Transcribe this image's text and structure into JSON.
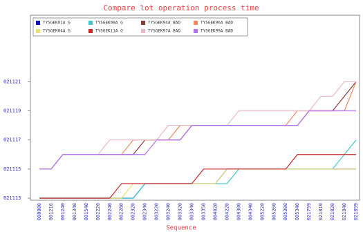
{
  "chart_data": {
    "type": "line",
    "title": "Compare lot operation process time",
    "x_label": "Sequence",
    "categories": [
      "000000",
      "001216",
      "001240",
      "001340",
      "001540",
      "002220",
      "002240",
      "002280",
      "002320",
      "002340",
      "003220",
      "003240",
      "003320",
      "003340",
      "003350",
      "004020",
      "004220",
      "004300",
      "004340",
      "005220",
      "005260",
      "005300",
      "005340",
      "021759",
      "021810",
      "021820",
      "021840",
      "021859"
    ],
    "ylim": [
      21113,
      21125
    ],
    "yticks": [
      {
        "value": 21113,
        "label": "021113"
      },
      {
        "value": 21115,
        "label": "021115"
      },
      {
        "value": 21117,
        "label": "021117"
      },
      {
        "value": 21119,
        "label": "021119"
      },
      {
        "value": 21121,
        "label": "021121"
      }
    ],
    "series": [
      {
        "name": "TYSGEK01A G",
        "color": "#1010c0",
        "values": [
          21113,
          21113,
          21113,
          21113,
          21113,
          21113,
          21113,
          21113,
          21113,
          21114,
          21114,
          21114,
          21114,
          21114,
          21114,
          21114,
          21115,
          21115,
          21115,
          21115,
          21115,
          21115,
          21115,
          21115,
          21115,
          21115,
          21115,
          21115
        ]
      },
      {
        "name": "TYSGEK09A G",
        "color": "#40c8d0",
        "values": [
          21113,
          21113,
          21113,
          21113,
          21113,
          21113,
          21113,
          21113,
          21113,
          21114,
          21114,
          21114,
          21114,
          21114,
          21114,
          21114,
          21114,
          21115,
          21115,
          21115,
          21115,
          21115,
          21115,
          21115,
          21115,
          21115,
          21116,
          21117
        ]
      },
      {
        "name": "TYSGEK94A BAD",
        "color": "#8b3a3a",
        "values": [
          21115,
          21115,
          21116,
          21116,
          21116,
          21116,
          21116,
          21116,
          21116,
          21117,
          21117,
          21117,
          21117,
          21118,
          21118,
          21118,
          21118,
          21118,
          21118,
          21118,
          21118,
          21118,
          21118,
          21119,
          21119,
          21119,
          21120,
          21121
        ]
      },
      {
        "name": "TYSGEK96A BAD",
        "color": "#f08a60",
        "values": [
          21115,
          21115,
          21116,
          21116,
          21116,
          21116,
          21116,
          21116,
          21117,
          21117,
          21117,
          21117,
          21118,
          21118,
          21118,
          21118,
          21118,
          21118,
          21118,
          21118,
          21118,
          21118,
          21119,
          21119,
          21119,
          21119,
          21119,
          21121
        ]
      },
      {
        "name": "TYSGEK04A G",
        "color": "#e8e070",
        "values": [
          21113,
          21113,
          21113,
          21113,
          21113,
          21113,
          21113,
          21113,
          21114,
          21114,
          21114,
          21114,
          21114,
          21114,
          21114,
          21114,
          21115,
          21115,
          21115,
          21115,
          21115,
          21115,
          21115,
          21115,
          21115,
          21115,
          21115,
          21115
        ]
      },
      {
        "name": "TYSGEK11A G",
        "color": "#c82828",
        "values": [
          21113,
          21113,
          21113,
          21113,
          21113,
          21113,
          21113,
          21114,
          21114,
          21114,
          21114,
          21114,
          21114,
          21114,
          21115,
          21115,
          21115,
          21115,
          21115,
          21115,
          21115,
          21115,
          21116,
          21116,
          21116,
          21116,
          21116,
          21116
        ]
      },
      {
        "name": "TYSGEK97A BAD",
        "color": "#e8b8c8",
        "values": [
          21115,
          21115,
          21116,
          21116,
          21116,
          21116,
          21117,
          21117,
          21117,
          21117,
          21117,
          21118,
          21118,
          21118,
          21118,
          21118,
          21118,
          21119,
          21119,
          21119,
          21119,
          21119,
          21119,
          21119,
          21120,
          21120,
          21121,
          21121
        ]
      },
      {
        "name": "TYSGEK99A BAD",
        "color": "#b070f0",
        "values": [
          21115,
          21115,
          21116,
          21116,
          21116,
          21116,
          21116,
          21116,
          21116,
          21116,
          21117,
          21117,
          21117,
          21118,
          21118,
          21118,
          21118,
          21118,
          21118,
          21118,
          21118,
          21118,
          21118,
          21119,
          21119,
          21119,
          21119,
          21119
        ]
      }
    ]
  }
}
